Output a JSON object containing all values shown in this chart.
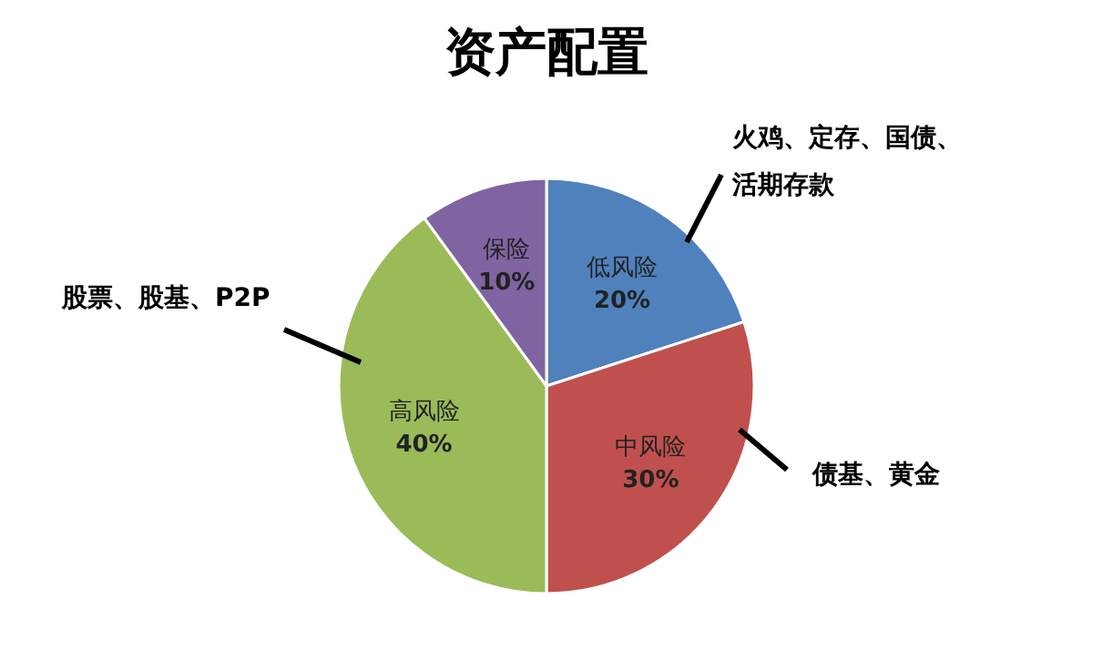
{
  "chart_data": {
    "type": "pie",
    "title": "资产配置",
    "categories": [
      "低风险",
      "中风险",
      "高风险",
      "保险"
    ],
    "values": [
      20,
      30,
      40,
      10
    ],
    "value_labels": [
      "20%",
      "30%",
      "40%",
      "10%"
    ],
    "colors": [
      "#4f81bd",
      "#c0504d",
      "#9bbb59",
      "#8064a2"
    ],
    "annotations": [
      "火鸡、定存、国债、活期存款",
      "债基、黄金",
      "股票、股基、P2P"
    ]
  }
}
